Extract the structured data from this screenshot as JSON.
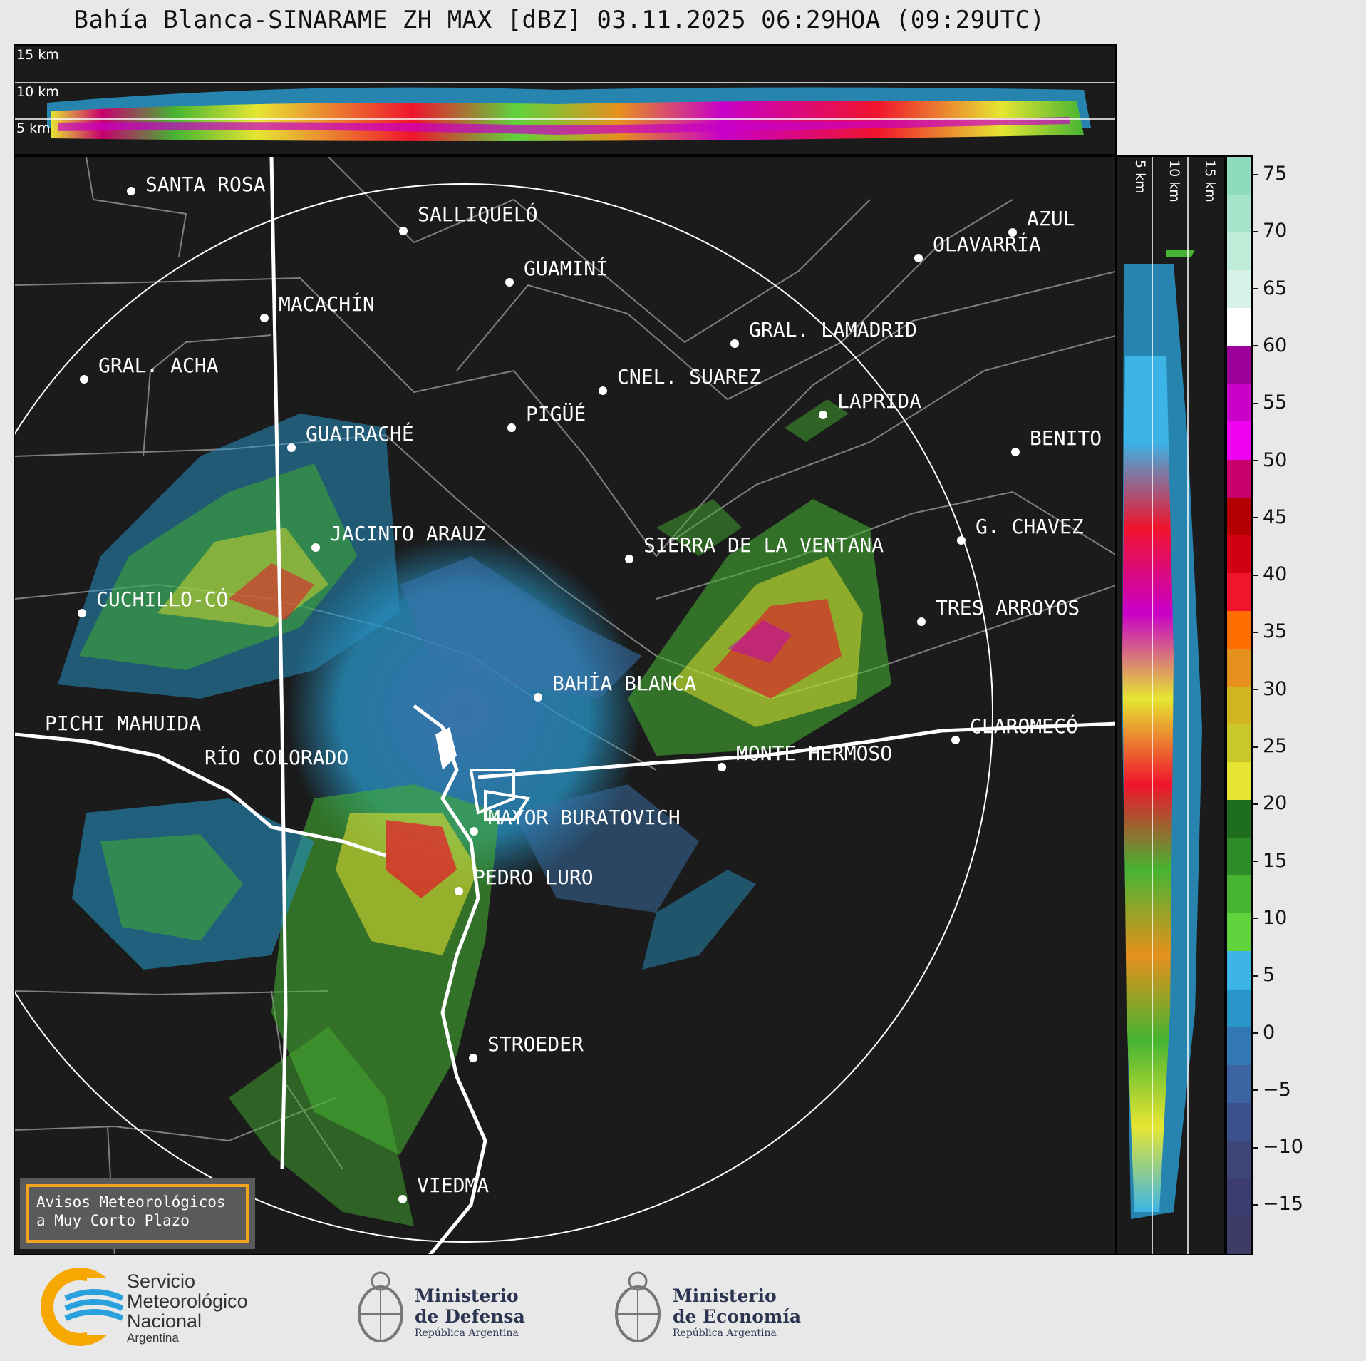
{
  "title": "Bahía Blanca-SINARAME ZH MAX [dBZ] 03.11.2025 06:29HOA (09:29UTC)",
  "height_labels": {
    "h15": "15 km",
    "h10": "10 km",
    "h5": "5 km"
  },
  "colorbar": {
    "ticks": [
      "75",
      "70",
      "65",
      "60",
      "55",
      "50",
      "45",
      "40",
      "35",
      "30",
      "25",
      "20",
      "15",
      "10",
      "5",
      "0",
      "−5",
      "−10",
      "−15"
    ],
    "colors": [
      "#8fdcbd",
      "#a6e4cb",
      "#bfecd9",
      "#d7f3e7",
      "#ffffff",
      "#9b009b",
      "#c800c8",
      "#f000f0",
      "#c8006e",
      "#b40000",
      "#d20014",
      "#f0142d",
      "#ff6e00",
      "#e6911e",
      "#d2b41e",
      "#c8c828",
      "#e6e632",
      "#1e6e1e",
      "#2d8c28",
      "#46b432",
      "#5fd23c",
      "#3cb4e6",
      "#2896c8",
      "#3278b4",
      "#3c64a0",
      "#3c508c",
      "#3c4678",
      "#3c3c6e",
      "#3c3c64"
    ]
  },
  "cities": [
    {
      "name": "SANTA ROSA"
    },
    {
      "name": "SALLIQUELÓ"
    },
    {
      "name": "GUAMINÍ"
    },
    {
      "name": "MACACHÍN"
    },
    {
      "name": "AZUL"
    },
    {
      "name": "OLAVARRÍA"
    },
    {
      "name": "GRAL. LAMADRID"
    },
    {
      "name": "GRAL. ACHA"
    },
    {
      "name": "CNEL. SUAREZ"
    },
    {
      "name": "LAPRIDA"
    },
    {
      "name": "PIGÜÉ"
    },
    {
      "name": "GUATRACHÉ"
    },
    {
      "name": "BENITO"
    },
    {
      "name": "G. CHAVEZ"
    },
    {
      "name": "JACINTO ARAUZ"
    },
    {
      "name": "SIERRA DE LA VENTANA"
    },
    {
      "name": "CUCHILLO-CÓ"
    },
    {
      "name": "TRES ARROYOS"
    },
    {
      "name": "BAHÍA BLANCA"
    },
    {
      "name": "PICHI MAHUIDA"
    },
    {
      "name": "CLAROMECÓ"
    },
    {
      "name": "MONTE HERMOSO"
    },
    {
      "name": "RÍO COLORADO"
    },
    {
      "name": "MAYOR BURATOVICH"
    },
    {
      "name": "PEDRO LURO"
    },
    {
      "name": "STROEDER"
    },
    {
      "name": "VIEDMA"
    }
  ],
  "aviso": {
    "line1": "Avisos Meteorológicos",
    "line2": "a Muy Corto Plazo"
  },
  "footer": {
    "smn": {
      "line1": "Servicio",
      "line2": "Meteorológico",
      "line3": "Nacional",
      "line4": "Argentina"
    },
    "defensa": {
      "line1": "Ministerio",
      "line2": "de Defensa",
      "line3": "República Argentina"
    },
    "economia": {
      "line1": "Ministerio",
      "line2": "de Economía",
      "line3": "República Argentina"
    }
  }
}
